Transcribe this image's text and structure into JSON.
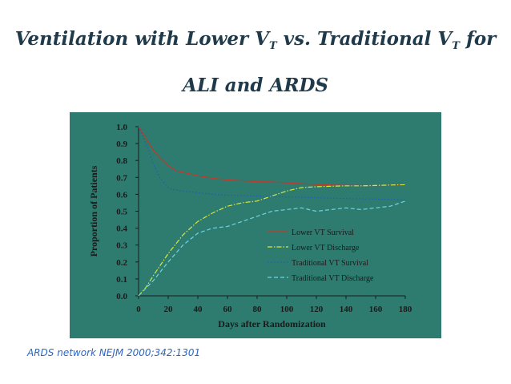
{
  "slide": {
    "title_part1": "Ventilation with Lower V",
    "title_sub1": "T",
    "title_part2": " vs. Traditional V",
    "title_sub2": "T",
    "title_part3": " for",
    "title_line2": "ALI and ARDS",
    "citation": "ARDS network  NEJM 2000;342:1301"
  },
  "colors": {
    "panel_bg": "#2e7c70",
    "lower_survival": "#c0392b",
    "lower_discharge": "#d4e840",
    "traditional_survival": "#1f5fa8",
    "traditional_discharge": "#6fd3dd"
  },
  "chart_data": {
    "type": "line",
    "xlabel": "Days after Randomization",
    "ylabel": "Proportion of Patients",
    "xlim": [
      0,
      180
    ],
    "ylim": [
      0,
      1.0
    ],
    "x_ticks": [
      "0",
      "20",
      "40",
      "60",
      "80",
      "100",
      "120",
      "140",
      "160",
      "180"
    ],
    "y_ticks": [
      "0.0",
      "0.1",
      "0.2",
      "0.3",
      "0.4",
      "0.5",
      "0.6",
      "0.7",
      "0.8",
      "0.9",
      "1.0"
    ],
    "grid": false,
    "legend_position": "lower-right",
    "series": [
      {
        "name": "Lower VT Survival",
        "color_key": "lower_survival",
        "dash": "solid",
        "points": [
          [
            0,
            1.0
          ],
          [
            5,
            0.93
          ],
          [
            10,
            0.86
          ],
          [
            15,
            0.81
          ],
          [
            20,
            0.77
          ],
          [
            25,
            0.74
          ],
          [
            30,
            0.73
          ],
          [
            40,
            0.71
          ],
          [
            50,
            0.695
          ],
          [
            60,
            0.685
          ],
          [
            70,
            0.68
          ],
          [
            80,
            0.675
          ],
          [
            90,
            0.673
          ],
          [
            100,
            0.668
          ],
          [
            110,
            0.663
          ],
          [
            120,
            0.658
          ],
          [
            130,
            0.655
          ],
          [
            140,
            0.653
          ],
          [
            150,
            0.652
          ],
          [
            160,
            0.651
          ],
          [
            170,
            0.652
          ],
          [
            180,
            0.655
          ]
        ]
      },
      {
        "name": "Lower VT Discharge",
        "color_key": "lower_discharge",
        "dash": "dashdot",
        "points": [
          [
            0,
            0.0
          ],
          [
            5,
            0.05
          ],
          [
            10,
            0.12
          ],
          [
            20,
            0.25
          ],
          [
            30,
            0.36
          ],
          [
            40,
            0.44
          ],
          [
            50,
            0.49
          ],
          [
            60,
            0.53
          ],
          [
            70,
            0.55
          ],
          [
            80,
            0.56
          ],
          [
            90,
            0.59
          ],
          [
            100,
            0.62
          ],
          [
            110,
            0.64
          ],
          [
            120,
            0.645
          ],
          [
            130,
            0.648
          ],
          [
            140,
            0.65
          ],
          [
            150,
            0.65
          ],
          [
            160,
            0.652
          ],
          [
            170,
            0.655
          ],
          [
            180,
            0.657
          ]
        ]
      },
      {
        "name": "Traditional VT Survival",
        "color_key": "traditional_survival",
        "dash": "dotted",
        "points": [
          [
            0,
            1.0
          ],
          [
            5,
            0.9
          ],
          [
            10,
            0.78
          ],
          [
            15,
            0.69
          ],
          [
            20,
            0.64
          ],
          [
            25,
            0.625
          ],
          [
            30,
            0.62
          ],
          [
            40,
            0.61
          ],
          [
            50,
            0.6
          ],
          [
            60,
            0.595
          ],
          [
            80,
            0.59
          ],
          [
            100,
            0.585
          ],
          [
            120,
            0.58
          ],
          [
            140,
            0.575
          ],
          [
            160,
            0.572
          ],
          [
            180,
            0.568
          ]
        ]
      },
      {
        "name": "Traditional VT Discharge",
        "color_key": "traditional_discharge",
        "dash": "dashed",
        "points": [
          [
            0,
            0.0
          ],
          [
            10,
            0.09
          ],
          [
            20,
            0.2
          ],
          [
            30,
            0.3
          ],
          [
            40,
            0.37
          ],
          [
            50,
            0.4
          ],
          [
            60,
            0.41
          ],
          [
            70,
            0.44
          ],
          [
            80,
            0.47
          ],
          [
            90,
            0.5
          ],
          [
            100,
            0.51
          ],
          [
            110,
            0.52
          ],
          [
            120,
            0.5
          ],
          [
            130,
            0.51
          ],
          [
            140,
            0.52
          ],
          [
            150,
            0.51
          ],
          [
            160,
            0.52
          ],
          [
            170,
            0.53
          ],
          [
            180,
            0.56
          ]
        ]
      }
    ]
  }
}
